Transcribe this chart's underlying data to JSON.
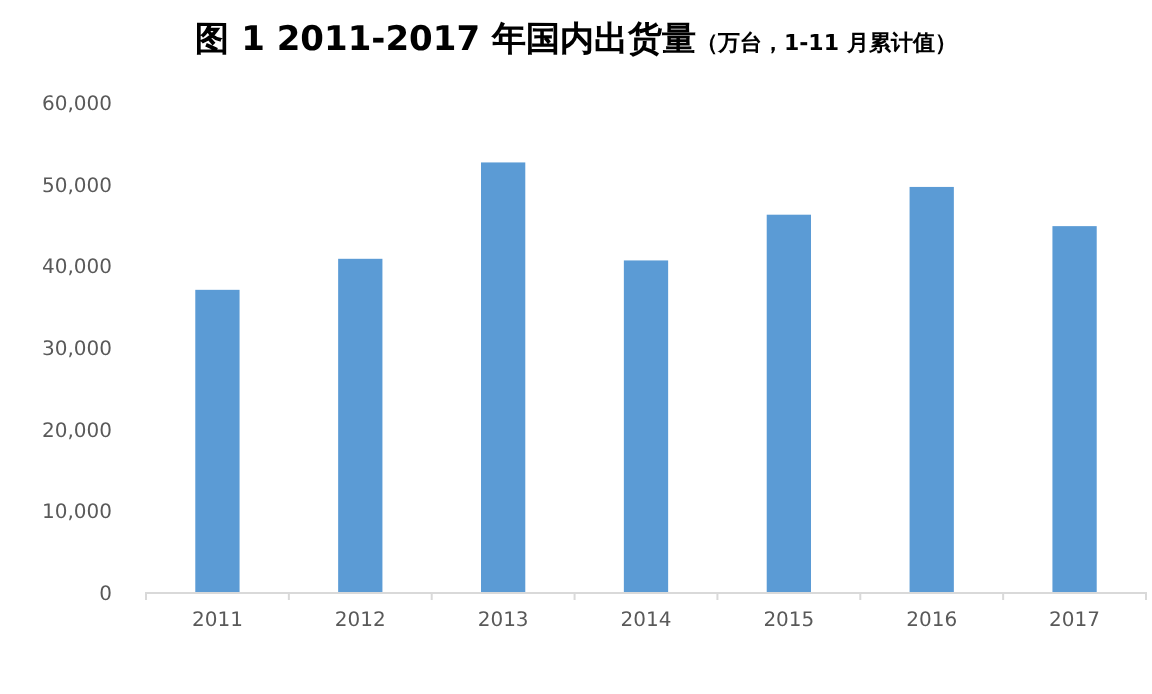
{
  "chart_data": {
    "type": "bar",
    "title": "图 1 2011-2017 年国内出货量",
    "subtitle": "（万台，1-11 月累计值）",
    "categories": [
      "2011",
      "2012",
      "2013",
      "2014",
      "2015",
      "2016",
      "2017"
    ],
    "values": [
      37000,
      40800,
      52600,
      40600,
      46200,
      49600,
      44800
    ],
    "color": "#5b9bd5",
    "ylim": [
      0,
      60000
    ],
    "yticks": [
      {
        "value": 0,
        "label": "0"
      },
      {
        "value": 10000,
        "label": "10,000"
      },
      {
        "value": 20000,
        "label": "20,000"
      },
      {
        "value": 30000,
        "label": "30,000"
      },
      {
        "value": 40000,
        "label": "40,000"
      },
      {
        "value": 50000,
        "label": "50,000"
      },
      {
        "value": 60000,
        "label": "60,000"
      }
    ],
    "grid": false
  }
}
